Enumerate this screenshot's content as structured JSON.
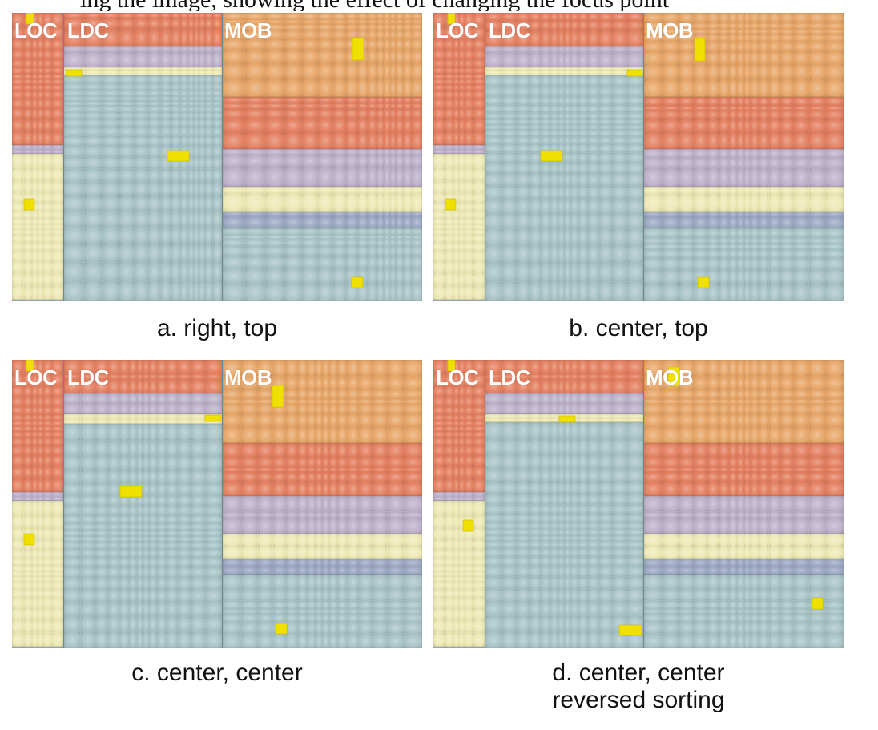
{
  "top_line_text": "ing the image, showing the effect of changing the focus point",
  "colors": {
    "orange": "#e7a566",
    "red": "#e47e5e",
    "lavender": "#bcb0c9",
    "cream": "#ede9b4",
    "slate": "#9aa7c2",
    "teal": "#a7c3c6",
    "highlight": "#f0e000"
  },
  "panels": [
    {
      "id": "a",
      "labels": {
        "loc": "LOC",
        "ldc": "LDC",
        "mob": "MOB"
      },
      "caption_lines": [
        "a. right, top"
      ]
    },
    {
      "id": "b",
      "labels": {
        "loc": "LOC",
        "ldc": "LDC",
        "mob": "MOB"
      },
      "caption_lines": [
        "b. center, top"
      ]
    },
    {
      "id": "c",
      "labels": {
        "loc": "LOC",
        "ldc": "LDC",
        "mob": "MOB"
      },
      "caption_lines": [
        "c. center, center"
      ]
    },
    {
      "id": "d",
      "labels": {
        "loc": "LOC",
        "ldc": "LDC",
        "mob": "MOB"
      },
      "caption_lines": [
        "d. center, center",
        "reversed sorting"
      ]
    }
  ]
}
